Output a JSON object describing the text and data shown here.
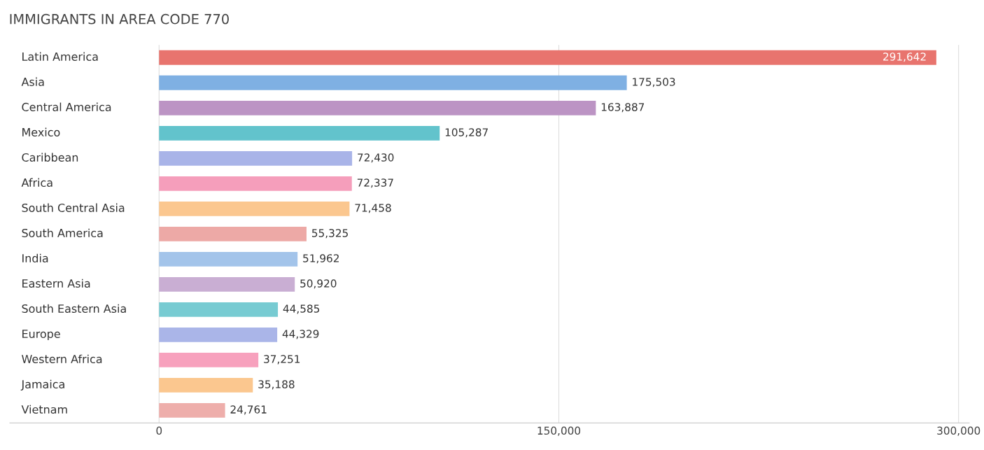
{
  "chart_data": {
    "type": "bar",
    "orientation": "horizontal",
    "title": "IMMIGRANTS IN AREA CODE 770",
    "categories": [
      "Latin America",
      "Asia",
      "Central America",
      "Mexico",
      "Caribbean",
      "Africa",
      "South Central Asia",
      "South America",
      "India",
      "Eastern Asia",
      "South Eastern Asia",
      "Europe",
      "Western Africa",
      "Jamaica",
      "Vietnam"
    ],
    "values": [
      291642,
      175503,
      163887,
      105287,
      72430,
      72337,
      71458,
      55325,
      51962,
      50920,
      44585,
      44329,
      37251,
      35188,
      24761
    ],
    "colors": [
      "#e8746e",
      "#7fb0e3",
      "#bc94c4",
      "#62c3cc",
      "#a9b4e8",
      "#f59ebb",
      "#fbc78f",
      "#eda9a6",
      "#a3c4ea",
      "#c9aed3",
      "#77cbd2",
      "#aab5e8",
      "#f7a1bd",
      "#fbc78f",
      "#eeaeab"
    ],
    "xlim": [
      -56000,
      304000
    ],
    "xticks": [
      {
        "value": 0,
        "label": "0"
      },
      {
        "value": 150000,
        "label": "150,000"
      },
      {
        "value": 300000,
        "label": "300,000"
      }
    ],
    "value_labels": [
      "291,642",
      "175,503",
      "163,887",
      "105,287",
      "72,430",
      "72,337",
      "71,458",
      "55,325",
      "51,962",
      "50,920",
      "44,585",
      "44,329",
      "37,251",
      "35,188",
      "24,761"
    ],
    "grid": "x"
  }
}
